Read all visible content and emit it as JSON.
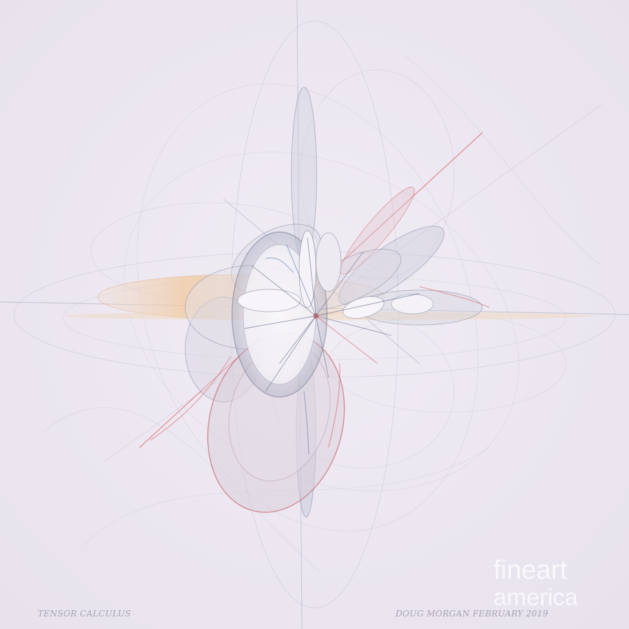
{
  "artwork": {
    "title": "TENSOR CALCULUS",
    "credit": "DOUG MORGAN  FEBRUARY 2019",
    "subject": "fractal-flame",
    "palette": {
      "background": "#ebe6f0",
      "line_grey": "#8b90a8",
      "line_blue": "#5d7aa8",
      "accent_red": "#d9626a",
      "accent_peach": "#f0c9a0"
    }
  },
  "watermark": {
    "line1": "fineart",
    "line2": "america"
  }
}
